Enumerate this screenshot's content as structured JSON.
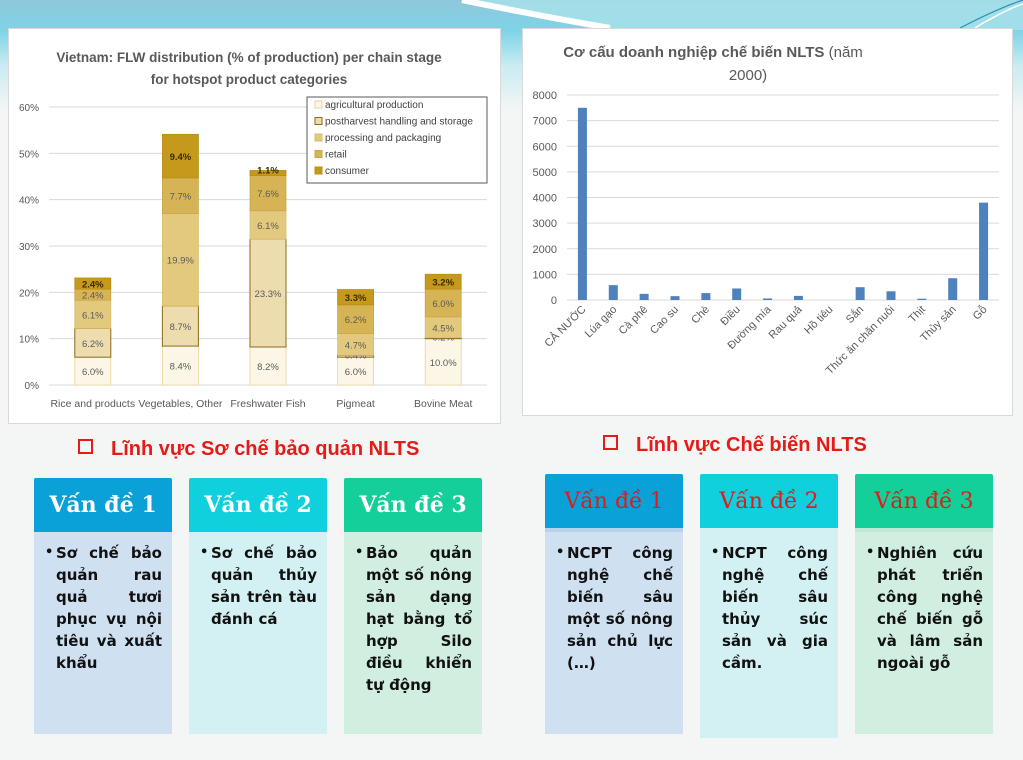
{
  "chart_data": [
    {
      "type": "bar",
      "stacked": true,
      "title": "Vietnam: FLW distribution (% of production) per chain stage for hotspot product categories",
      "title_lines": [
        "Vietnam: FLW distribution (% of production) per chain stage",
        "for hotspot product categories"
      ],
      "xlabel": "",
      "ylabel": "",
      "ylim": [
        0,
        60
      ],
      "yticks": [
        0,
        10,
        20,
        30,
        40,
        50,
        60
      ],
      "ytick_labels": [
        "0%",
        "10%",
        "20%",
        "30%",
        "40%",
        "50%",
        "60%"
      ],
      "grid": true,
      "legend_position": "top-right",
      "categories": [
        "Rice and products",
        "Vegetables, Other",
        "Freshwater Fish",
        "Pigmeat",
        "Bovine Meat"
      ],
      "series": [
        {
          "name": "agricultural production",
          "color": "#fbf6e6",
          "values": [
            6.0,
            8.4,
            8.2,
            6.0,
            10.0
          ],
          "labels": [
            "6.0%",
            "8.4%",
            "8.2%",
            "6.0%",
            "10.0%"
          ]
        },
        {
          "name": "postharvest handling and storage",
          "color": "#ecdcae",
          "values": [
            6.2,
            8.7,
            23.3,
            0.4,
            0.2
          ],
          "labels": [
            "6.2%",
            "8.7%",
            "23.3%",
            "0.4%",
            "0.2%"
          ]
        },
        {
          "name": "processing and packaging",
          "color": "#e3c97e",
          "values": [
            6.1,
            19.9,
            6.1,
            4.7,
            4.5
          ],
          "labels": [
            "6.1%",
            "19.9%",
            "6.1%",
            "4.7%",
            "4.5%"
          ]
        },
        {
          "name": "retail",
          "color": "#d6b355",
          "values": [
            2.4,
            7.7,
            7.6,
            6.2,
            6.0
          ],
          "labels": [
            "2.4%",
            "7.7%",
            "7.6%",
            "6.2%",
            "6.0%"
          ]
        },
        {
          "name": "consumer",
          "color": "#c59a1c",
          "values": [
            2.4,
            9.4,
            1.1,
            3.3,
            3.2
          ],
          "labels": [
            "2.4%",
            "9.4%",
            "1.1%",
            "3.3%",
            "3.2%"
          ]
        }
      ]
    },
    {
      "type": "bar",
      "title": "Cơ cấu doanh nghiệp chế biến NLTS (năm 2000)",
      "title_bold": "Cơ cấu doanh nghiệp chế biến NLTS",
      "title_rest": " (năm",
      "title_line2": "2000)",
      "xlabel": "",
      "ylabel": "",
      "ylim": [
        0,
        8000
      ],
      "yticks": [
        0,
        1000,
        2000,
        3000,
        4000,
        5000,
        6000,
        7000,
        8000
      ],
      "ytick_labels": [
        "0",
        "1000",
        "2000",
        "3000",
        "4000",
        "5000",
        "6000",
        "7000",
        "8000"
      ],
      "grid": true,
      "color": "#4f81bd",
      "categories": [
        "CẢ NƯỚC",
        "Lúa gạo",
        "Cà phê",
        "Cao su",
        "Chè",
        "Điều",
        "Đường mía",
        "Rau quả",
        "Hồ tiêu",
        "Sắn",
        "Thức ăn chăn nuôi",
        "Thịt",
        "Thủy sản",
        "Gỗ"
      ],
      "values": [
        7500,
        580,
        240,
        150,
        270,
        450,
        60,
        160,
        0,
        500,
        340,
        50,
        850,
        3800
      ]
    }
  ],
  "sections": [
    {
      "title": "Lĩnh vực Sơ chế bảo quản NLTS",
      "cards": [
        {
          "heading": "Vấn đề 1",
          "text": "Sơ chế bảo quản rau quả tươi phục vụ nội tiêu và xuất khẩu"
        },
        {
          "heading": "Vấn đề 2",
          "text": "Sơ chế bảo quản thủy sản trên tàu đánh cá"
        },
        {
          "heading": "Vấn đề 3",
          "text": "Bảo quản một số nông sản dạng hạt bằng tổ hợp Silo điều khiển tự động"
        }
      ]
    },
    {
      "title": "Lĩnh vực Chế biến NLTS",
      "cards": [
        {
          "heading": "Vấn đề 1",
          "text": "NCPT công nghệ chế biến sâu một số nông sản chủ lực (…)"
        },
        {
          "heading": "Vấn đề 2",
          "text": "NCPT công nghệ chế biến sâu thủy súc sản và gia cầm."
        },
        {
          "heading": "Vấn đề 3",
          "text": "Nghiên cứu phát triển công nghệ chế biến gỗ và lâm sản ngoài gỗ"
        }
      ]
    }
  ],
  "colors": {
    "section_title": "#e41b17",
    "card_head_1": "#0aa0d8",
    "card_head_2": "#0fd0dc",
    "card_head_3": "#14cf9a"
  }
}
